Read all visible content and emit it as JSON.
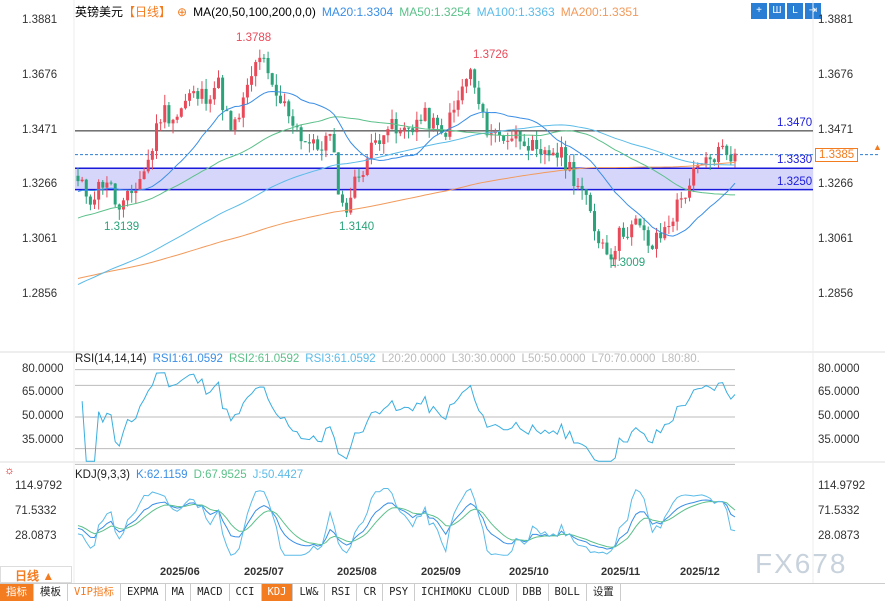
{
  "header": {
    "symbol": "英镑美元",
    "period": "【日线】",
    "ma_label": "MA(20,50,100,200,0,0)",
    "ma20": "MA20:1.3304",
    "ma50": "MA50:1.3254",
    "ma100": "MA100:1.3363",
    "ma200": "MA200:1.3351"
  },
  "colors": {
    "up": "#e94a5a",
    "down": "#2aa37a",
    "ma20": "#3a8ee6",
    "ma50": "#5cc08a",
    "ma100": "#5bbbe8",
    "ma200": "#f29a5b",
    "accent": "#f47c20",
    "level": "#1a1adb"
  },
  "price_axis": {
    "ticks": [
      "1.3881",
      "1.3676",
      "1.3471",
      "1.3266",
      "1.3061",
      "1.2856"
    ],
    "current": "1.3385"
  },
  "levels": {
    "resistance": "1.3470",
    "zone_top": "1.3330",
    "zone_bottom": "1.3250"
  },
  "annotations": {
    "high1": "1.3788",
    "high2": "1.3726",
    "low1": "1.3139",
    "low2": "1.3140",
    "low3": "1.3009"
  },
  "rsi": {
    "title": "RSI(14,14,14)",
    "rsi1": "RSI1:61.0592",
    "rsi2": "RSI2:61.0592",
    "rsi3": "RSI3:61.0592",
    "l20": "L20:20.0000",
    "l30": "L30:30.0000",
    "l50": "L50:50.0000",
    "l70": "L70:70.0000",
    "l80": "L80:80.",
    "ticks": [
      "80.0000",
      "65.0000",
      "50.0000",
      "35.0000"
    ]
  },
  "kdj": {
    "title": "KDJ(9,3,3)",
    "k": "K:62.1159",
    "d": "D:67.9525",
    "j": "J:50.4427",
    "ticks": [
      "114.9792",
      "71.5332",
      "28.0873"
    ]
  },
  "period_button": "日线 ▲",
  "dates": [
    "2025/06",
    "2025/07",
    "2025/08",
    "2025/09",
    "2025/10",
    "2025/11",
    "2025/12"
  ],
  "watermark": "FX678",
  "toolbar": [
    "指标",
    "模板",
    "VIP指标",
    "EXPMA",
    "MA",
    "MACD",
    "CCI",
    "KDJ",
    "LW&",
    "RSI",
    "CR",
    "PSY",
    "ICHIMOKU CLOUD",
    "DBB",
    "BOLL",
    "设置"
  ],
  "chart_data": {
    "type": "candlestick",
    "approx_closes": [
      1.327,
      1.322,
      1.33,
      1.316,
      1.325,
      1.335,
      1.355,
      1.352,
      1.36,
      1.36,
      1.365,
      1.345,
      1.36,
      1.376,
      1.36,
      1.355,
      1.345,
      1.34,
      1.345,
      1.316,
      1.33,
      1.34,
      1.35,
      1.345,
      1.35,
      1.352,
      1.345,
      1.355,
      1.37,
      1.35,
      1.345,
      1.345,
      1.345,
      1.335,
      1.34,
      1.335,
      1.325,
      1.31,
      1.301,
      1.31,
      1.312,
      1.303,
      1.31,
      1.32,
      1.33,
      1.335,
      1.34,
      1.3385
    ]
  }
}
